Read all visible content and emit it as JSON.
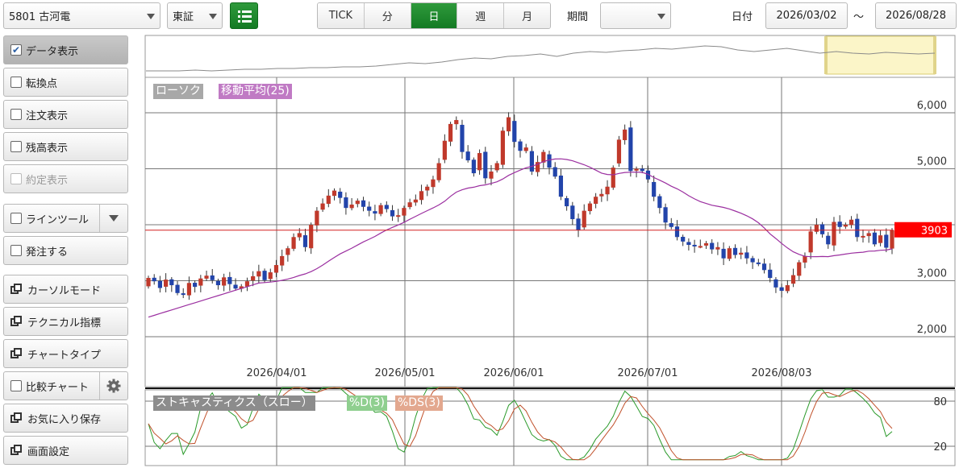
{
  "header": {
    "stock": "5801 古河電",
    "market": "東証",
    "periods": [
      "TICK",
      "分",
      "日",
      "週",
      "月"
    ],
    "active_period": "日",
    "period_label": "期間",
    "period_value": "",
    "date_label": "日付",
    "date_from": "2026/03/02",
    "date_sep": "～",
    "date_to": "2026/08/28"
  },
  "sidebar": {
    "data_display": "データ表示",
    "turning_point": "転換点",
    "order_display": "注文表示",
    "balance_display": "残高表示",
    "executed_display": "約定表示",
    "line_tool": "ラインツール",
    "place_order": "発注する",
    "cursor_mode": "カーソルモード",
    "technical": "テクニカル指標",
    "chart_type": "チャートタイプ",
    "compare_chart": "比較チャート",
    "save_favorite": "お気に入り保存",
    "screen_settings": "画面設定"
  },
  "colors": {
    "up": "#c0392b",
    "down": "#2244aa",
    "ma": "#9b2fa0",
    "accent": "#1d8a2e",
    "price_tag": "#ff0000"
  },
  "chart_data": {
    "type": "candlestick",
    "main_legend": [
      "ローソク",
      "移動平均(25)"
    ],
    "y_ticks": [
      6000,
      5000,
      3000,
      2000
    ],
    "x_ticks": [
      "2026/04/01",
      "2026/05/01",
      "2026/06/01",
      "2026/07/01",
      "2026/08/03"
    ],
    "ylim": [
      1850,
      6250
    ],
    "last_price": "3903",
    "stoch_legend": [
      "ストキャスティクス（スロー）",
      "%D(3)",
      "%DS(3)"
    ],
    "stoch_ticks": [
      80,
      20
    ],
    "stoch_ylim": [
      0,
      100
    ]
  }
}
